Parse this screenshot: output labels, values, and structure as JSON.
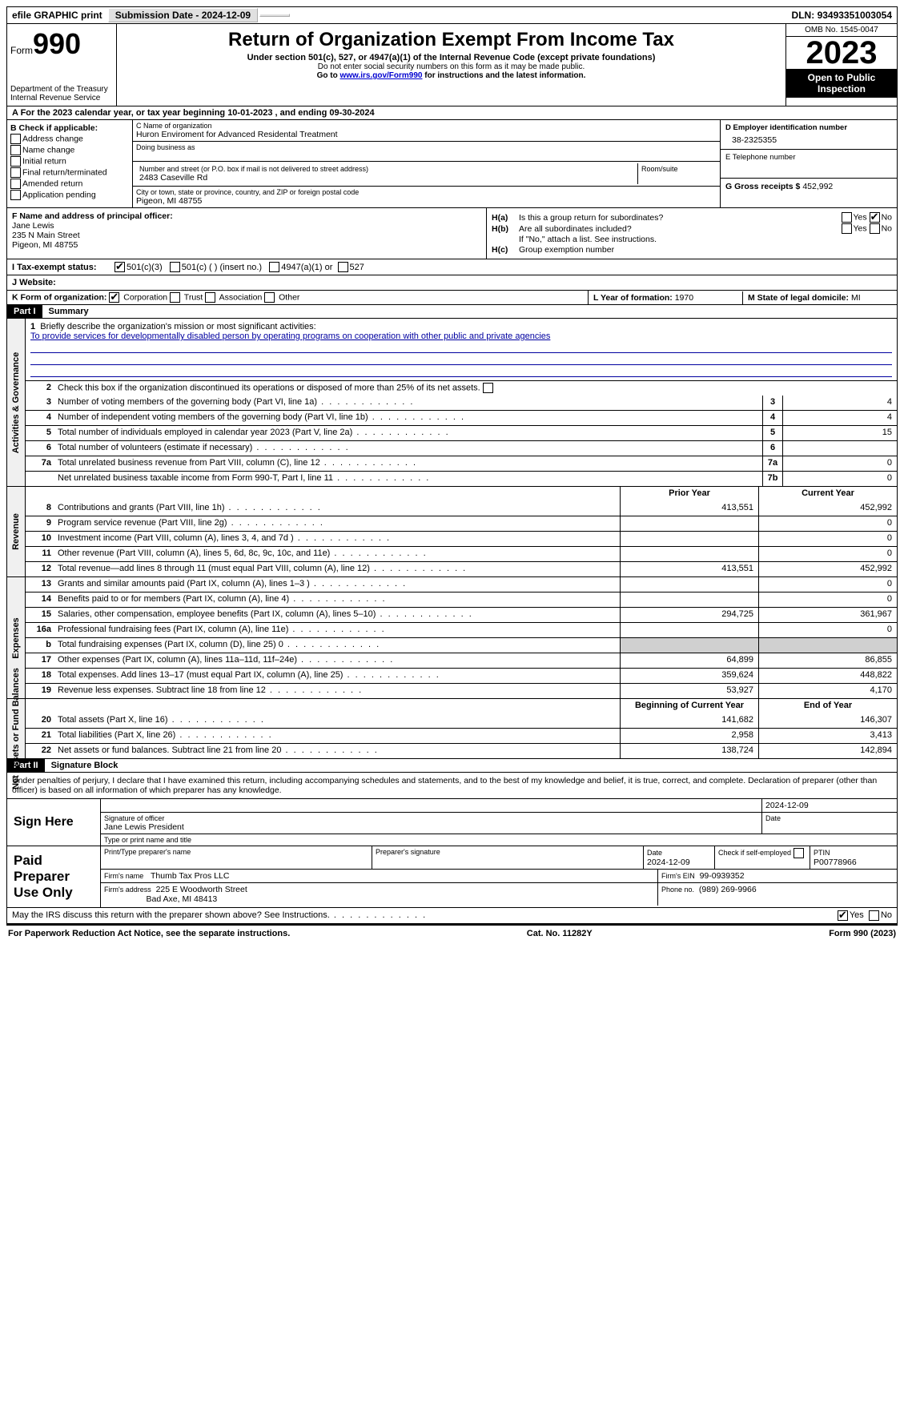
{
  "topbar": {
    "efile": "efile GRAPHIC print",
    "submission_label": "Submission Date - ",
    "submission_date": "2024-12-09",
    "dln_label": "DLN:",
    "dln": "93493351003054"
  },
  "header": {
    "form_label": "Form",
    "form_no": "990",
    "dept": "Department of the Treasury\nInternal Revenue Service",
    "title": "Return of Organization Exempt From Income Tax",
    "sub": "Under section 501(c), 527, or 4947(a)(1) of the Internal Revenue Code (except private foundations)",
    "note1": "Do not enter social security numbers on this form as it may be made public.",
    "note2_pre": "Go to ",
    "note2_link": "www.irs.gov/Form990",
    "note2_post": " for instructions and the latest information.",
    "omb": "OMB No. 1545-0047",
    "year": "2023",
    "open": "Open to Public Inspection"
  },
  "sectionA": {
    "text": "A  For the 2023 calendar year, or tax year beginning 10-01-2023    , and ending 09-30-2024"
  },
  "boxB": {
    "title": "B Check if applicable:",
    "opts": [
      "Address change",
      "Name change",
      "Initial return",
      "Final return/terminated",
      "Amended return",
      "Application pending"
    ]
  },
  "boxC": {
    "name_lab": "C Name of organization",
    "name": "Huron Enviroment for Advanced Residental Treatment",
    "dba_lab": "Doing business as",
    "addr_lab": "Number and street (or P.O. box if mail is not delivered to street address)",
    "addr": "2483 Caseville Rd",
    "room_lab": "Room/suite",
    "city_lab": "City or town, state or province, country, and ZIP or foreign postal code",
    "city": "Pigeon, MI  48755"
  },
  "boxD": {
    "lab": "D Employer identification number",
    "val": "38-2325355"
  },
  "boxE": {
    "lab": "E Telephone number"
  },
  "boxG": {
    "lab": "G Gross receipts $",
    "val": "452,992"
  },
  "boxF": {
    "lab": "F  Name and address of principal officer:",
    "name": "Jane Lewis",
    "addr1": "235 N Main Street",
    "addr2": "Pigeon, MI  48755"
  },
  "boxH": {
    "a_lab": "H(a)",
    "a_txt": "Is this a group return for subordinates?",
    "a_no_checked": true,
    "b_lab": "H(b)",
    "b_txt": "Are all subordinates included?",
    "b_note": "If \"No,\" attach a list. See instructions.",
    "c_lab": "H(c)",
    "c_txt": "Group exemption number"
  },
  "status": {
    "lab": "I  Tax-exempt status:",
    "o1": "501(c)(3)",
    "o1_checked": true,
    "o2": "501(c) (  ) (insert no.)",
    "o3": "4947(a)(1) or",
    "o4": "527"
  },
  "website": {
    "lab": "J  Website:"
  },
  "formorg": {
    "lab": "K Form of organization:",
    "o1": "Corporation",
    "o1_checked": true,
    "o2": "Trust",
    "o3": "Association",
    "o4": "Other"
  },
  "boxL": {
    "lab": "L Year of formation:",
    "val": "1970"
  },
  "boxM": {
    "lab": "M State of legal domicile:",
    "val": "MI"
  },
  "part1": {
    "hdr": "Part I",
    "title": "Summary"
  },
  "mission": {
    "lab": "Briefly describe the organization's mission or most significant activities:",
    "text": "To provide services for developmentally disabled person by operating programs on cooperation with other public and private agencies"
  },
  "line2": "Check this box      if the organization discontinued its operations or disposed of more than 25% of its net assets.",
  "gov_lines": [
    {
      "n": "3",
      "d": "Number of voting members of the governing body (Part VI, line 1a)",
      "b": "3",
      "v": "4"
    },
    {
      "n": "4",
      "d": "Number of independent voting members of the governing body (Part VI, line 1b)",
      "b": "4",
      "v": "4"
    },
    {
      "n": "5",
      "d": "Total number of individuals employed in calendar year 2023 (Part V, line 2a)",
      "b": "5",
      "v": "15"
    },
    {
      "n": "6",
      "d": "Total number of volunteers (estimate if necessary)",
      "b": "6",
      "v": ""
    },
    {
      "n": "7a",
      "d": "Total unrelated business revenue from Part VIII, column (C), line 12",
      "b": "7a",
      "v": "0"
    },
    {
      "n": "",
      "d": "Net unrelated business taxable income from Form 990-T, Part I, line 11",
      "b": "7b",
      "v": "0"
    }
  ],
  "rev_hdr": {
    "prior": "Prior Year",
    "curr": "Current Year"
  },
  "rev_lines": [
    {
      "n": "8",
      "d": "Contributions and grants (Part VIII, line 1h)",
      "p": "413,551",
      "c": "452,992"
    },
    {
      "n": "9",
      "d": "Program service revenue (Part VIII, line 2g)",
      "p": "",
      "c": "0"
    },
    {
      "n": "10",
      "d": "Investment income (Part VIII, column (A), lines 3, 4, and 7d )",
      "p": "",
      "c": "0"
    },
    {
      "n": "11",
      "d": "Other revenue (Part VIII, column (A), lines 5, 6d, 8c, 9c, 10c, and 11e)",
      "p": "",
      "c": "0"
    },
    {
      "n": "12",
      "d": "Total revenue—add lines 8 through 11 (must equal Part VIII, column (A), line 12)",
      "p": "413,551",
      "c": "452,992"
    }
  ],
  "exp_lines": [
    {
      "n": "13",
      "d": "Grants and similar amounts paid (Part IX, column (A), lines 1–3 )",
      "p": "",
      "c": "0"
    },
    {
      "n": "14",
      "d": "Benefits paid to or for members (Part IX, column (A), line 4)",
      "p": "",
      "c": "0"
    },
    {
      "n": "15",
      "d": "Salaries, other compensation, employee benefits (Part IX, column (A), lines 5–10)",
      "p": "294,725",
      "c": "361,967"
    },
    {
      "n": "16a",
      "d": "Professional fundraising fees (Part IX, column (A), line 11e)",
      "p": "",
      "c": "0"
    },
    {
      "n": "b",
      "d": "Total fundraising expenses (Part IX, column (D), line 25) 0",
      "p": "grey",
      "c": "grey"
    },
    {
      "n": "17",
      "d": "Other expenses (Part IX, column (A), lines 11a–11d, 11f–24e)",
      "p": "64,899",
      "c": "86,855"
    },
    {
      "n": "18",
      "d": "Total expenses. Add lines 13–17 (must equal Part IX, column (A), line 25)",
      "p": "359,624",
      "c": "448,822"
    },
    {
      "n": "19",
      "d": "Revenue less expenses. Subtract line 18 from line 12",
      "p": "53,927",
      "c": "4,170"
    }
  ],
  "na_hdr": {
    "prior": "Beginning of Current Year",
    "curr": "End of Year"
  },
  "na_lines": [
    {
      "n": "20",
      "d": "Total assets (Part X, line 16)",
      "p": "141,682",
      "c": "146,307"
    },
    {
      "n": "21",
      "d": "Total liabilities (Part X, line 26)",
      "p": "2,958",
      "c": "3,413"
    },
    {
      "n": "22",
      "d": "Net assets or fund balances. Subtract line 21 from line 20",
      "p": "138,724",
      "c": "142,894"
    }
  ],
  "sides": {
    "gov": "Activities & Governance",
    "rev": "Revenue",
    "exp": "Expenses",
    "na": "Net Assets or Fund Balances"
  },
  "part2": {
    "hdr": "Part II",
    "title": "Signature Block"
  },
  "penalty": "Under penalties of perjury, I declare that I have examined this return, including accompanying schedules and statements, and to the best of my knowledge and belief, it is true, correct, and complete. Declaration of preparer (other than officer) is based on all information of which preparer has any knowledge.",
  "sign": {
    "here": "Sign Here",
    "date": "2024-12-09",
    "sig_lab": "Signature of officer",
    "name": "Jane Lewis President",
    "type_lab": "Type or print name and title",
    "date_lab": "Date"
  },
  "paid": {
    "lab": "Paid Preparer Use Only",
    "col1": "Print/Type preparer's name",
    "col2": "Preparer's signature",
    "col3_lab": "Date",
    "col3": "2024-12-09",
    "col4_lab": "Check       if self-employed",
    "col5_lab": "PTIN",
    "col5": "P00778966",
    "firm_lab": "Firm's name",
    "firm": "Thumb Tax Pros LLC",
    "ein_lab": "Firm's EIN",
    "ein": "99-0939352",
    "addr_lab": "Firm's address",
    "addr": "225 E Woodworth Street",
    "city": "Bad Axe, MI  48413",
    "phone_lab": "Phone no.",
    "phone": "(989) 269-9966"
  },
  "discuss": {
    "q": "May the IRS discuss this return with the preparer shown above? See Instructions.",
    "yes_checked": true
  },
  "footer": {
    "left": "For Paperwork Reduction Act Notice, see the separate instructions.",
    "mid": "Cat. No. 11282Y",
    "right_pre": "Form ",
    "right_b": "990",
    "right_post": " (2023)"
  },
  "labels": {
    "yes": "Yes",
    "no": "No"
  }
}
